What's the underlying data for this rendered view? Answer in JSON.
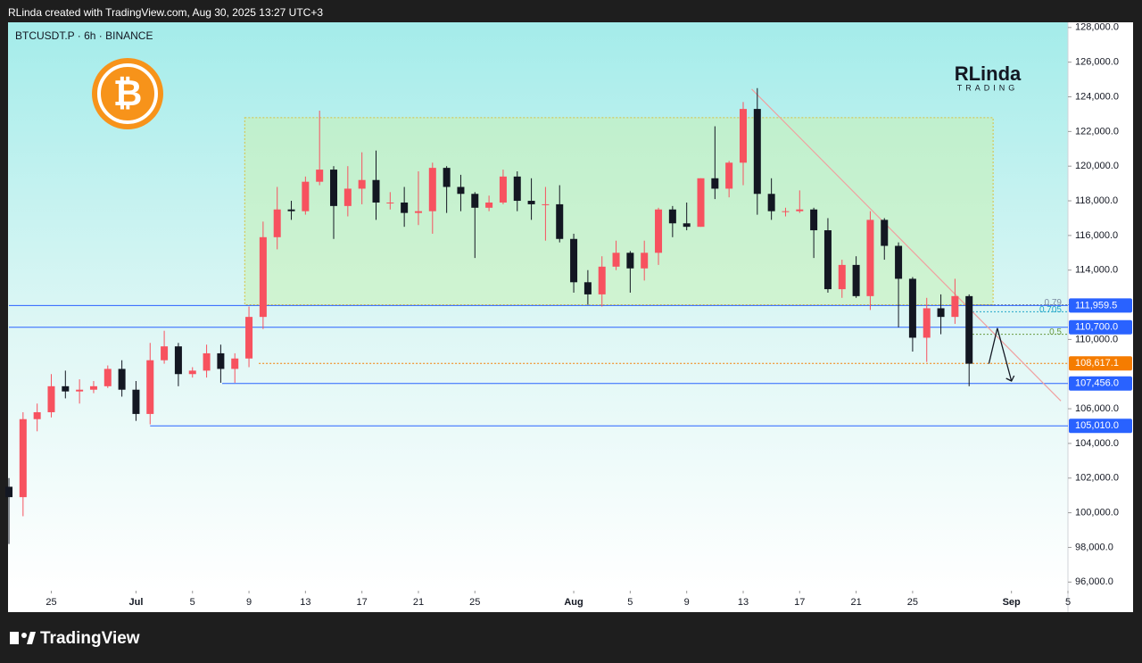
{
  "header": "RLinda created with TradingView.com, Aug 30, 2025 13:27 UTC+3",
  "footer": "TradingView",
  "brand": {
    "name": "RLinda",
    "tagline": "TRADING"
  },
  "chart_data": {
    "type": "candlestick",
    "title": "BTCUSDT.P · 6h · BINANCE",
    "up_color": "#f7525f",
    "down_color": "#131722",
    "xlim": [
      0,
      75
    ],
    "ylim": [
      95500,
      128300
    ],
    "xticks": [
      {
        "value": 3,
        "label": "25"
      },
      {
        "value": 9,
        "label": "Jul"
      },
      {
        "value": 13,
        "label": "5"
      },
      {
        "value": 17,
        "label": "9"
      },
      {
        "value": 21,
        "label": "13"
      },
      {
        "value": 25,
        "label": "17"
      },
      {
        "value": 29,
        "label": "21"
      },
      {
        "value": 33,
        "label": "25"
      },
      {
        "value": 40,
        "label": "Aug"
      },
      {
        "value": 44,
        "label": "5"
      },
      {
        "value": 48,
        "label": "9"
      },
      {
        "value": 52,
        "label": "13"
      },
      {
        "value": 56,
        "label": "17"
      },
      {
        "value": 60,
        "label": "21"
      },
      {
        "value": 64,
        "label": "25"
      },
      {
        "value": 71,
        "label": "Sep"
      },
      {
        "value": 75,
        "label": "5"
      }
    ],
    "yticks": [
      {
        "value": 128000,
        "label": "128,000.0"
      },
      {
        "value": 126000,
        "label": "126,000.0"
      },
      {
        "value": 124000,
        "label": "124,000.0"
      },
      {
        "value": 122000,
        "label": "122,000.0"
      },
      {
        "value": 120000,
        "label": "120,000.0"
      },
      {
        "value": 118000,
        "label": "118,000.0"
      },
      {
        "value": 116000,
        "label": "116,000.0"
      },
      {
        "value": 114000,
        "label": "114,000.0"
      },
      {
        "value": 112000,
        "label": "112,000.0"
      },
      {
        "value": 110000,
        "label": "110,000.0"
      },
      {
        "value": 106000,
        "label": "106,000.0"
      },
      {
        "value": 104000,
        "label": "104,000.0"
      },
      {
        "value": 102000,
        "label": "102,000.0"
      },
      {
        "value": 100000,
        "label": "100,000.0"
      },
      {
        "value": 98000,
        "label": "98,000.0"
      },
      {
        "value": 96000,
        "label": "96,000.0"
      }
    ],
    "x": [
      0,
      1,
      2,
      3,
      4,
      5,
      6,
      7,
      8,
      9,
      10,
      11,
      12,
      13,
      14,
      15,
      16,
      17,
      18,
      19,
      20,
      21,
      22,
      23,
      24,
      25,
      26,
      27,
      28,
      29,
      30,
      31,
      32,
      33,
      34,
      35,
      36,
      37,
      38,
      39,
      40,
      41,
      42,
      43,
      44,
      45,
      46,
      47,
      48,
      49,
      50,
      51,
      52,
      53,
      54,
      55,
      56,
      57,
      58,
      59,
      60,
      61,
      62,
      63,
      64,
      65,
      66,
      67,
      68
    ],
    "open": [
      101500,
      100900,
      105400,
      105800,
      107300,
      107000,
      107100,
      107300,
      108300,
      107100,
      105700,
      108800,
      109600,
      108000,
      108200,
      109200,
      108300,
      108900,
      111300,
      115900,
      117500,
      117400,
      119100,
      119800,
      117700,
      118700,
      119200,
      117900,
      117900,
      117300,
      117400,
      119900,
      118800,
      118400,
      117600,
      117900,
      119400,
      118000,
      117800,
      117800,
      115800,
      113300,
      112600,
      114200,
      115000,
      114100,
      115000,
      117500,
      116700,
      116500,
      119300,
      118700,
      120200,
      123300,
      118400,
      117400,
      117400,
      117500,
      116300,
      112900,
      114300,
      112500,
      116900,
      115400,
      113500,
      110100,
      111800,
      111300,
      112500
    ],
    "high": [
      102000,
      105800,
      106300,
      108000,
      108200,
      107700,
      107600,
      108500,
      108800,
      107600,
      109800,
      110500,
      109800,
      108400,
      109700,
      109700,
      109200,
      111900,
      116800,
      118800,
      118000,
      119400,
      123200,
      120000,
      120000,
      120800,
      120900,
      118500,
      118800,
      119700,
      120200,
      120000,
      119500,
      118500,
      118300,
      119800,
      119700,
      119300,
      118800,
      118900,
      116100,
      114000,
      114800,
      115700,
      115100,
      115700,
      117600,
      117700,
      117900,
      119300,
      122300,
      120300,
      123700,
      124500,
      119300,
      117600,
      118600,
      117600,
      117000,
      114600,
      114800,
      117400,
      117000,
      115600,
      113600,
      112400,
      112600,
      113500,
      112600
    ],
    "low": [
      98200,
      99800,
      104700,
      105500,
      106600,
      106300,
      106900,
      107200,
      106700,
      105300,
      105100,
      108600,
      107300,
      107800,
      107800,
      107500,
      107500,
      108400,
      110600,
      115200,
      116900,
      117200,
      118900,
      115800,
      117100,
      117800,
      116900,
      117500,
      116500,
      116600,
      116100,
      117300,
      117400,
      114700,
      117400,
      117800,
      117400,
      116900,
      115700,
      115600,
      112700,
      112000,
      111900,
      114000,
      112700,
      113400,
      114300,
      115900,
      116300,
      116500,
      118100,
      118200,
      118900,
      117200,
      116900,
      117100,
      117300,
      114700,
      112700,
      112400,
      112400,
      111700,
      114600,
      110700,
      109300,
      108700,
      110300,
      110900,
      107300
    ],
    "close": [
      100900,
      105400,
      105800,
      107300,
      107000,
      107100,
      107300,
      108300,
      107100,
      105700,
      108800,
      109600,
      108000,
      108200,
      109200,
      108300,
      108900,
      111300,
      115900,
      117500,
      117400,
      119100,
      119800,
      117700,
      118700,
      119200,
      117900,
      117900,
      117300,
      117400,
      119900,
      118800,
      118400,
      117600,
      117900,
      119400,
      118000,
      117800,
      117800,
      115800,
      113300,
      112600,
      114200,
      115000,
      114100,
      115000,
      117500,
      116700,
      116500,
      119300,
      118700,
      120200,
      123300,
      118400,
      117400,
      117400,
      117500,
      116300,
      112900,
      114300,
      112500,
      116900,
      115400,
      113500,
      110100,
      111800,
      111300,
      112500,
      108600
    ],
    "range_box": {
      "x": [
        16.7,
        69.7
      ],
      "y": [
        112000,
        122800
      ],
      "color": "#c8f0b4"
    },
    "trendline": {
      "x": [
        52.6,
        74.5
      ],
      "y": [
        124450,
        106450
      ],
      "color": "#f0a0a0"
    },
    "projection": {
      "x": [
        69.4,
        70,
        71
      ],
      "y": [
        108600,
        110650,
        107600
      ]
    },
    "levels": [
      {
        "value": 111959.5,
        "label": "111,959.5",
        "color": "#2962ff",
        "start": 0
      },
      {
        "value": 110700,
        "label": "110,700.0",
        "color": "#2962ff",
        "start": 0
      },
      {
        "value": 108617.1,
        "label": "108,617.1",
        "color": "#f57c00",
        "start": 17.7
      },
      {
        "value": 107456,
        "label": "107,456.0",
        "color": "#2962ff",
        "start": 15.1
      },
      {
        "value": 105010,
        "label": "105,010.0",
        "color": "#2962ff",
        "start": 10
      }
    ],
    "fib": [
      {
        "level": "0.79",
        "price": 112000,
        "color": "#7a8aa0"
      },
      {
        "level": "0.705",
        "price": 111600,
        "color": "#22a6c8"
      },
      {
        "level": "0.5",
        "price": 110300,
        "color": "#6a9a40"
      }
    ]
  }
}
